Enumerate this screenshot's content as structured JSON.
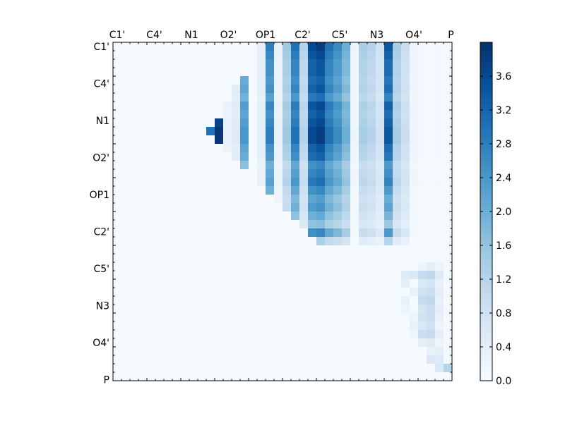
{
  "chart_data": {
    "type": "heatmap",
    "title": "",
    "xlabel": "",
    "ylabel": "",
    "row_labels": [
      "C1'",
      "C4'",
      "N1",
      "O2'",
      "OP1",
      "C2'",
      "C5'",
      "N3",
      "O4'",
      "P"
    ],
    "col_labels": [
      "C1'",
      "C4'",
      "N1",
      "O2'",
      "OP1",
      "C2'",
      "C5'",
      "N3",
      "O4'",
      "P"
    ],
    "grid_size": 40,
    "colormap": "Blues",
    "colorbar": {
      "range": [
        0.0,
        4.0
      ],
      "ticks": [
        "0.0",
        "0.4",
        "0.8",
        "1.2",
        "1.6",
        "2.0",
        "2.4",
        "2.8",
        "3.2",
        "3.6"
      ],
      "tick_values": [
        0.0,
        0.4,
        0.8,
        1.2,
        1.6,
        2.0,
        2.4,
        2.8,
        3.2,
        3.6
      ]
    },
    "column_strength": [
      0.8,
      0.6,
      0.9,
      1.0,
      1.0,
      0.6,
      0.2,
      0.6,
      0.0,
      1.5,
      2.0,
      3.0,
      3.9,
      0.3,
      0.5,
      2.4,
      0.0,
      0.4,
      2.8,
      0.3,
      1.5,
      3.0,
      1.2,
      3.6,
      3.8,
      3.0,
      2.6,
      2.0,
      0.2,
      1.4,
      1.2,
      0.8,
      3.4,
      1.4,
      0.9,
      0.2,
      0.1,
      0.0,
      0.1,
      0.0
    ],
    "row_strength": [
      1.0,
      0.95,
      0.9,
      0.9,
      0.85,
      0.9,
      0.8,
      0.95,
      0.9,
      0.95,
      1.0,
      1.0,
      0.9,
      0.85,
      0.7,
      0.75,
      0.8,
      0.7,
      0.6,
      0.65,
      0.55,
      0.45,
      0.7,
      0.35
    ],
    "lower_right_values": [
      [
        26,
        36,
        0.25
      ],
      [
        26,
        37,
        0.4
      ],
      [
        26,
        38,
        0.2
      ],
      [
        27,
        34,
        0.5
      ],
      [
        27,
        35,
        0.6
      ],
      [
        27,
        36,
        1.0
      ],
      [
        27,
        37,
        1.1
      ],
      [
        27,
        38,
        0.5
      ],
      [
        28,
        34,
        0.4
      ],
      [
        28,
        36,
        0.6
      ],
      [
        28,
        37,
        0.7
      ],
      [
        28,
        38,
        0.3
      ],
      [
        29,
        35,
        0.3
      ],
      [
        29,
        36,
        0.8
      ],
      [
        29,
        37,
        0.9
      ],
      [
        29,
        38,
        0.4
      ],
      [
        30,
        34,
        0.3
      ],
      [
        30,
        36,
        1.0
      ],
      [
        30,
        37,
        1.1
      ],
      [
        30,
        38,
        0.3
      ],
      [
        31,
        34,
        0.2
      ],
      [
        31,
        36,
        0.7
      ],
      [
        31,
        37,
        0.9
      ],
      [
        31,
        38,
        0.4
      ],
      [
        32,
        35,
        0.2
      ],
      [
        32,
        36,
        0.8
      ],
      [
        32,
        37,
        0.9
      ],
      [
        32,
        38,
        0.3
      ],
      [
        33,
        35,
        0.3
      ],
      [
        33,
        36,
        0.6
      ],
      [
        33,
        37,
        0.8
      ],
      [
        33,
        38,
        0.2
      ],
      [
        34,
        35,
        0.2
      ],
      [
        34,
        36,
        0.9
      ],
      [
        34,
        37,
        1.0
      ],
      [
        34,
        38,
        0.4
      ],
      [
        35,
        36,
        0.4
      ],
      [
        35,
        37,
        0.5
      ],
      [
        35,
        38,
        0.2
      ],
      [
        36,
        37,
        0.3
      ],
      [
        36,
        38,
        0.4
      ],
      [
        37,
        37,
        0.6
      ],
      [
        37,
        38,
        0.5
      ],
      [
        38,
        38,
        0.6
      ],
      [
        38,
        39,
        1.2
      ],
      [
        38,
        40,
        0.9
      ]
    ]
  }
}
